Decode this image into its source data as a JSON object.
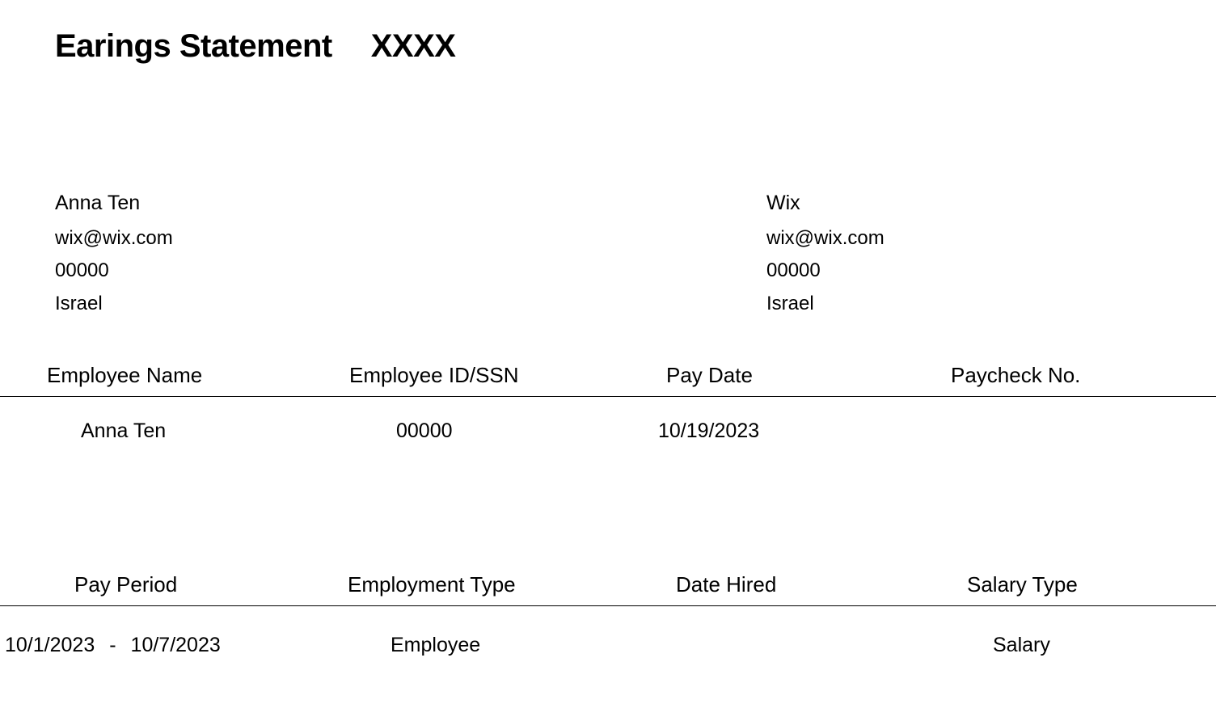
{
  "header": {
    "title": "Earings Statement",
    "code": "XXXX"
  },
  "employee_info": {
    "name": "Anna Ten",
    "email": "wix@wix.com",
    "code": "00000",
    "country": "Israel"
  },
  "company_info": {
    "name": "Wix",
    "email": "wix@wix.com",
    "code": "00000",
    "country": "Israel"
  },
  "table1": {
    "headers": {
      "col1": "Employee Name",
      "col2": "Employee ID/SSN",
      "col3": "Pay Date",
      "col4": "Paycheck No."
    },
    "row": {
      "employee_name": "Anna Ten",
      "employee_id": "00000",
      "pay_date": "10/19/2023",
      "paycheck_no": ""
    }
  },
  "table2": {
    "headers": {
      "col1": "Pay Period",
      "col2": "Employment Type",
      "col3": "Date Hired",
      "col4": "Salary Type"
    },
    "row": {
      "pay_period_start": "10/1/2023",
      "pay_period_sep": "-",
      "pay_period_end": "10/7/2023",
      "employment_type": "Employee",
      "date_hired": "",
      "salary_type": "Salary"
    }
  },
  "styling": {
    "page_background": "#ffffff",
    "text_color": "#000000",
    "border_color": "#000000",
    "title_fontsize": 40,
    "header_fontsize": 26,
    "body_fontsize": 25,
    "info_fontsize": 24
  }
}
